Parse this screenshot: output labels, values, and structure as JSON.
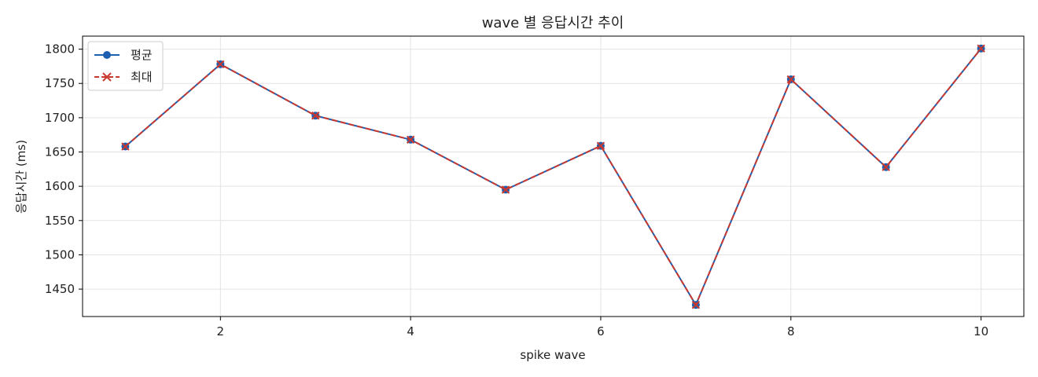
{
  "chart_data": {
    "type": "line",
    "title": "wave 별 응답시간 추이",
    "xlabel": "spike wave",
    "ylabel": "응답시간 (ms)",
    "x": [
      1,
      2,
      3,
      4,
      5,
      6,
      7,
      8,
      9,
      10
    ],
    "xticks": [
      2,
      4,
      6,
      8,
      10
    ],
    "yticks": [
      1450,
      1500,
      1550,
      1600,
      1650,
      1700,
      1750,
      1800
    ],
    "xlim": [
      0.55,
      10.45
    ],
    "ylim": [
      1410,
      1819
    ],
    "grid": true,
    "legend_position": "top-left",
    "series": [
      {
        "name": "평균",
        "values": [
          1658,
          1778,
          1703,
          1668,
          1595,
          1659,
          1427,
          1756,
          1628,
          1801
        ],
        "color": "#1f5fb0",
        "marker": "circle",
        "line_style": "solid"
      },
      {
        "name": "최대",
        "values": [
          1658,
          1778,
          1703,
          1668,
          1595,
          1659,
          1427,
          1756,
          1628,
          1801
        ],
        "color": "#c8382e",
        "marker": "x",
        "line_style": "dashed"
      }
    ]
  }
}
